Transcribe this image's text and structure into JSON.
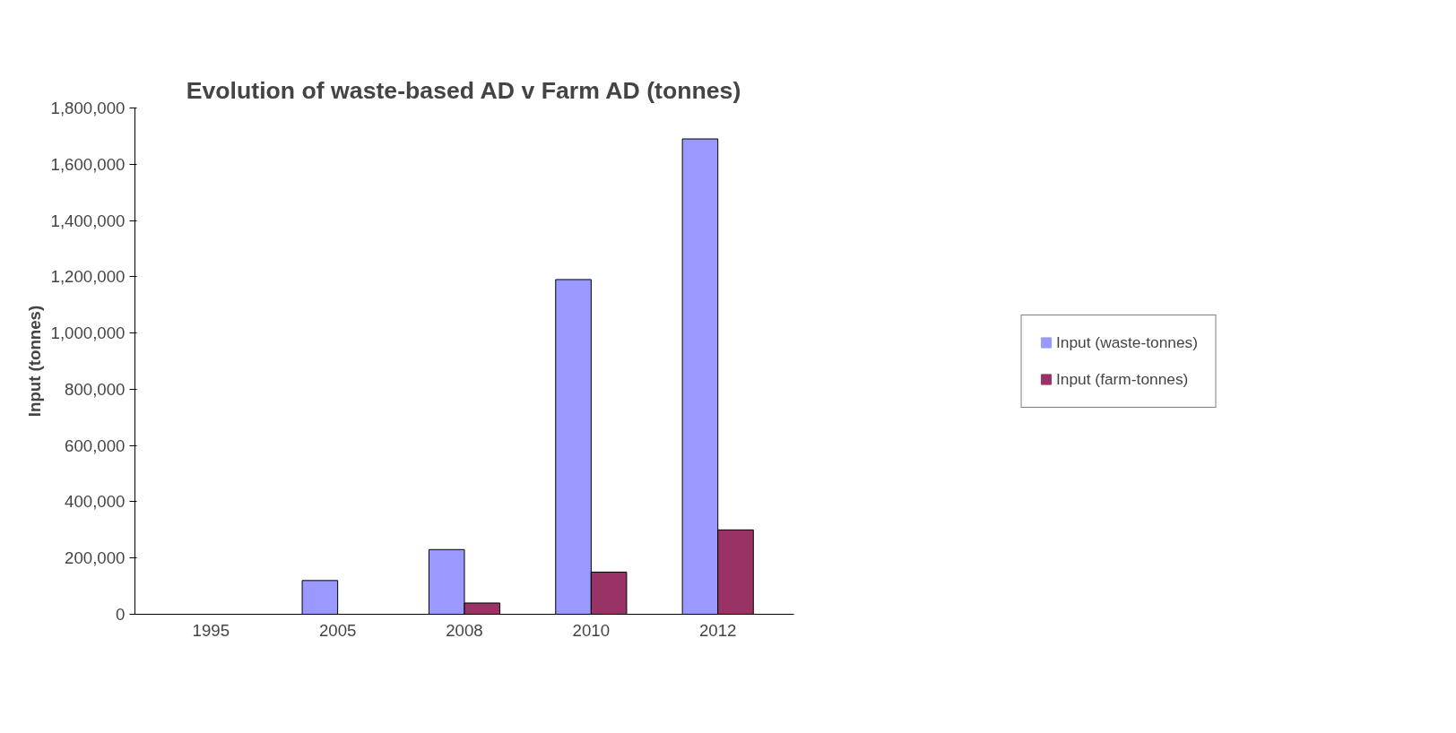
{
  "chart_data": {
    "type": "bar",
    "title": "Evolution of waste-based AD v Farm AD (tonnes)",
    "ylabel": "Input (tonnes)",
    "categories": [
      "1995",
      "2005",
      "2008",
      "2010",
      "2012"
    ],
    "series": [
      {
        "name": "Input (waste-tonnes)",
        "color": "#9999ff",
        "values": [
          0,
          120000,
          230000,
          1190000,
          1690000
        ]
      },
      {
        "name": "Input (farm-tonnes)",
        "color": "#993366",
        "values": [
          0,
          0,
          40000,
          150000,
          300000
        ]
      }
    ],
    "ylim": [
      0,
      1800000
    ],
    "yticks": [
      0,
      {
        "value": 200000,
        "label": "200,000"
      },
      {
        "value": 400000,
        "label": "400,000"
      },
      {
        "value": 600000,
        "label": "600,000"
      },
      {
        "value": 800000,
        "label": "800,000"
      },
      {
        "value": 1000000,
        "label": "1,000,000"
      },
      {
        "value": 1200000,
        "label": "1,200,000"
      },
      {
        "value": 1400000,
        "label": "1,400,000"
      },
      {
        "value": 1600000,
        "label": "1,600,000"
      },
      {
        "value": 1800000,
        "label": "1,800,000"
      }
    ],
    "grid": false,
    "legend": "right"
  }
}
